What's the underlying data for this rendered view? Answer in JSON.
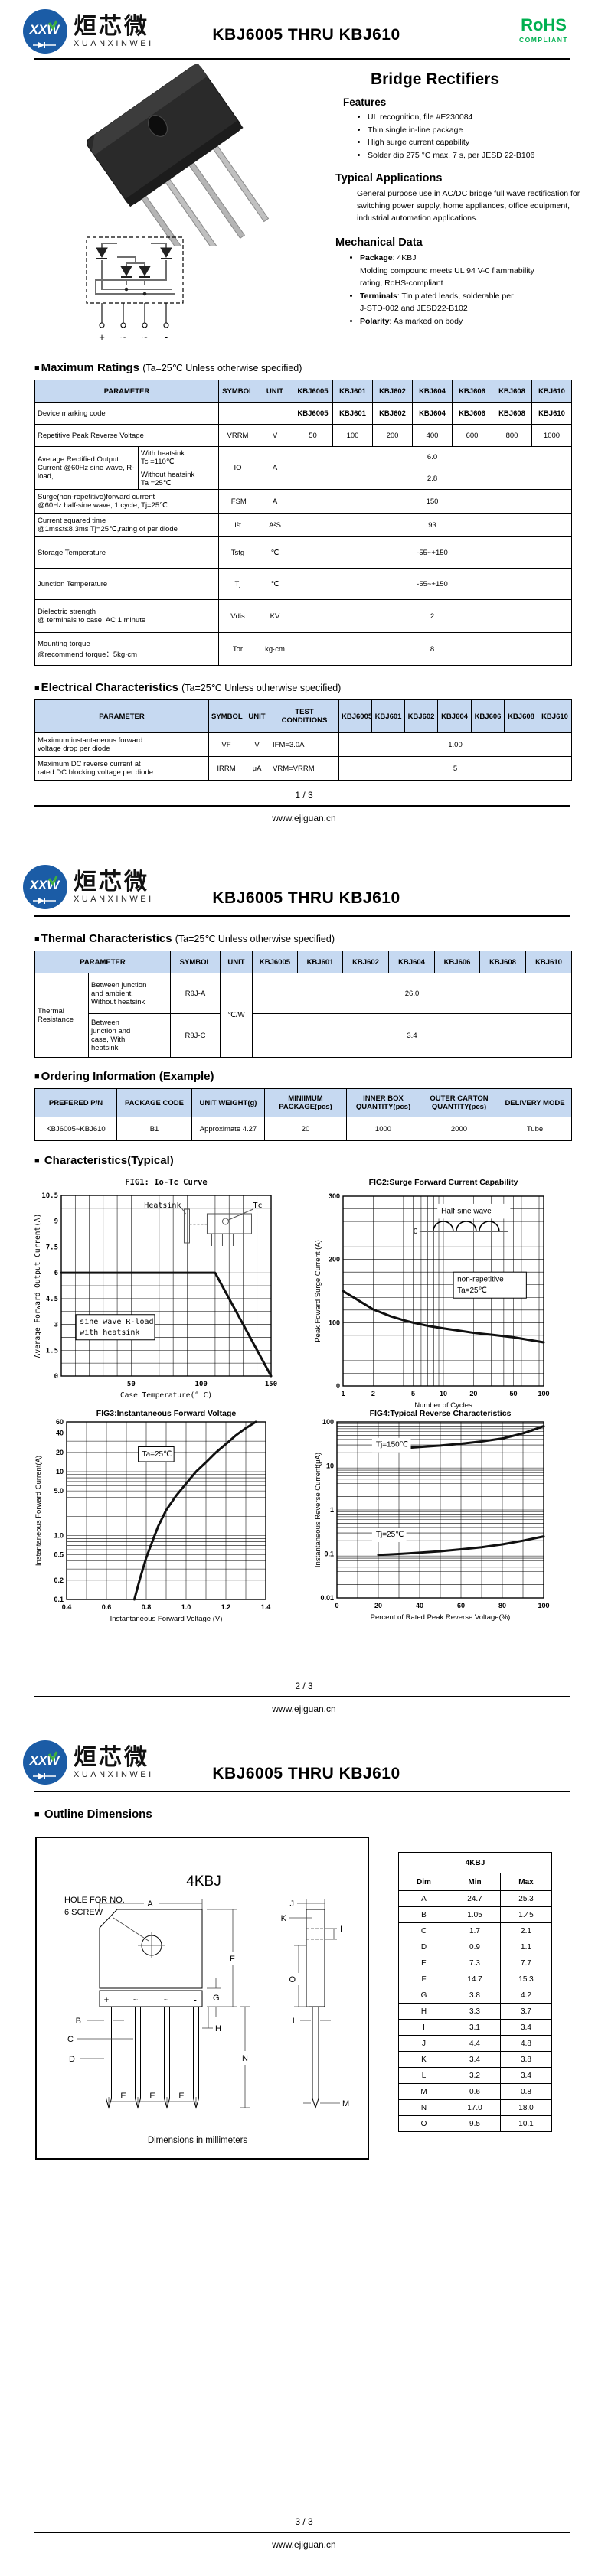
{
  "brand": {
    "mark": "XXW",
    "cn": "烜芯微",
    "en": "XUANXINWEI"
  },
  "doc": {
    "title": "KBJ6005 THRU KBJ610",
    "rohs": "RoHS",
    "rohs_sub": "COMPLIANT",
    "site": "www.ejiguan.cn",
    "pages": [
      "1 / 3",
      "2 / 3",
      "3 / 3"
    ],
    "bullet": "■"
  },
  "devices": [
    "KBJ6005",
    "KBJ601",
    "KBJ602",
    "KBJ604",
    "KBJ606",
    "KBJ608",
    "KBJ610"
  ],
  "intro": {
    "product_title": "Bridge Rectifiers",
    "features_title": "Features",
    "features": [
      "UL recognition, file #E230084",
      "Thin single in-line package",
      "High surge current capability",
      "Solder dip 275 °C max. 7 s, per JESD 22-B106"
    ],
    "apps_title": "Typical  Applications",
    "apps_text": "General purpose use in AC/DC bridge full wave rectification for switching power supply, home appliances, office equipment, industrial automation applications.",
    "mech_title": "Mechanical Data",
    "mech": [
      {
        "b": "Package",
        "t": ": 4KBJ\nMolding compound meets UL 94 V-0 flammability\nrating, RoHS-compliant"
      },
      {
        "b": "Terminals",
        "t": ": Tin plated leads, solderable per\nJ-STD-002 and JESD22-B102"
      },
      {
        "b": "Polarity",
        "t": ": As marked on body"
      }
    ],
    "pins": [
      "+",
      "~",
      "~",
      "-"
    ]
  },
  "max_ratings": {
    "heading": "Maximum Ratings",
    "condition": "(Ta=25℃ Unless otherwise specified)",
    "param_h": "PARAMETER",
    "symbol_h": "SYMBOL",
    "unit_h": "UNIT",
    "marking": {
      "param": "Device marking code"
    },
    "vrrm": {
      "param": "Repetitive Peak Reverse Voltage",
      "symbol": "VRRM",
      "unit": "V",
      "values": [
        "50",
        "100",
        "200",
        "400",
        "600",
        "800",
        "1000"
      ]
    },
    "io": {
      "param": "Average Rectified Output Current @60Hz sine wave, R-load,",
      "sub1": "With heatsink\nTc =110℃",
      "sub2": "Without heatsink\nTa =25℃",
      "symbol": "IO",
      "unit": "A",
      "v1": "6.0",
      "v2": "2.8"
    },
    "ifsm": {
      "param": "Surge(non-repetitive)forward current\n@60Hz half-sine wave, 1 cycle,  Tj=25℃",
      "symbol": "IFSM",
      "unit": "A",
      "value": "150"
    },
    "i2t": {
      "param": "Current squared time\n@1ms≤t≤8.3ms Tj=25℃,rating of per diode",
      "symbol": "I²t",
      "unit": "A²S",
      "value": "93"
    },
    "tstg": {
      "param": "Storage Temperature",
      "symbol": "Tstg",
      "unit": "℃",
      "value": "-55~+150"
    },
    "tj": {
      "param": "Junction Temperature",
      "symbol": "Tj",
      "unit": "℃",
      "value": "-55~+150"
    },
    "vdis": {
      "param": "Dielectric strength\n@ terminals to case, AC 1 minute",
      "symbol": "Vdis",
      "unit": "KV",
      "value": "2"
    },
    "tor": {
      "param": "Mounting torque\n@recommend torque：5kg·cm",
      "symbol": "Tor",
      "unit": "kg·cm",
      "value": "8"
    }
  },
  "electrical": {
    "heading": "Electrical Characteristics",
    "condition": "(Ta=25℃ Unless otherwise specified)",
    "param_h": "PARAMETER",
    "symbol_h": "SYMBOL",
    "unit_h": "UNIT",
    "cond_h": "TEST\nCONDITIONS",
    "vf": {
      "param": "Maximum instantaneous forward\nvoltage drop per diode",
      "symbol": "VF",
      "unit": "V",
      "cond": "IFM=3.0A",
      "value": "1.00"
    },
    "irrm": {
      "param": "Maximum DC reverse current at\nrated DC blocking voltage per diode",
      "symbol": "IRRM",
      "unit": "μA",
      "cond": "VRM=VRRM",
      "value": "5"
    }
  },
  "thermal": {
    "heading": "Thermal Characteristics",
    "condition": "(Ta=25℃ Unless otherwise specified)",
    "param_h": "PARAMETER",
    "symbol_h": "SYMBOL",
    "unit_h": "UNIT",
    "group": "Thermal\nResistance",
    "r1": {
      "sub": "Between junction\nand ambient,\nWithout heatsink",
      "symbol": "RθJ-A",
      "value": "26.0"
    },
    "r2": {
      "sub": "Between\njunction and\ncase, With\nheatsink",
      "symbol": "RθJ-C",
      "value": "3.4"
    },
    "unit": "℃/W"
  },
  "ordering": {
    "heading": "Ordering Information (Example)",
    "headers": [
      "PREFERED P/N",
      "PACKAGE CODE",
      "UNIT WEIGHT(g)",
      "MINIIMUM PACKAGE(pcs)",
      "INNER BOX QUANTITY(pcs)",
      "OUTER CARTON QUANTITY(pcs)",
      "DELIVERY MODE"
    ],
    "row": [
      "KBJ6005~KBJ610",
      "B1",
      "Approximate 4.27",
      "20",
      "1000",
      "2000",
      "Tube"
    ]
  },
  "characteristics": {
    "heading": "Characteristics(Typical)"
  },
  "outline": {
    "heading": "Outline Dimensions",
    "pkg": "4KBJ",
    "hole_note": [
      "HOLE FOR NO.",
      "6 SCREW"
    ],
    "dims_note": "Dimensions in millimeters",
    "labels": {
      "A": "A",
      "B": "B",
      "C": "C",
      "D": "D",
      "E": "E",
      "F": "F",
      "G": "G",
      "H": "H",
      "I": "I",
      "J": "J",
      "K": "K",
      "L": "L",
      "M": "M",
      "N": "N",
      "O": "O"
    },
    "table": {
      "title": "4KBJ",
      "cols": [
        "Dim",
        "Min",
        "Max"
      ],
      "rows": [
        [
          "A",
          "24.7",
          "25.3"
        ],
        [
          "B",
          "1.05",
          "1.45"
        ],
        [
          "C",
          "1.7",
          "2.1"
        ],
        [
          "D",
          "0.9",
          "1.1"
        ],
        [
          "E",
          "7.3",
          "7.7"
        ],
        [
          "F",
          "14.7",
          "15.3"
        ],
        [
          "G",
          "3.8",
          "4.2"
        ],
        [
          "H",
          "3.3",
          "3.7"
        ],
        [
          "I",
          "3.1",
          "3.4"
        ],
        [
          "J",
          "4.4",
          "4.8"
        ],
        [
          "K",
          "3.4",
          "3.8"
        ],
        [
          "L",
          "3.2",
          "3.4"
        ],
        [
          "M",
          "0.6",
          "0.8"
        ],
        [
          "N",
          "17.0",
          "18.0"
        ],
        [
          "O",
          "9.5",
          "10.1"
        ]
      ]
    }
  },
  "chart_data": [
    {
      "type": "line",
      "fig": "FIG1: Io-Tc Curve",
      "xlabel": "Case Temperature(° C)",
      "ylabel": "Average Forward Output Current(A)",
      "xscale": "linear",
      "yscale": "linear",
      "xlim": [
        0,
        150
      ],
      "ylim": [
        0,
        10.5
      ],
      "xgrid": {
        "mode": "lin",
        "step": 10
      },
      "ygrid": {
        "mode": "lin",
        "step": 0.75
      },
      "xticks": [
        [
          50,
          "50"
        ],
        [
          100,
          "100"
        ],
        [
          150,
          "150"
        ]
      ],
      "yticks": [
        [
          0,
          "0"
        ],
        [
          1.5,
          "1.5"
        ],
        [
          3,
          "3"
        ],
        [
          4.5,
          "4.5"
        ],
        [
          6,
          "6"
        ],
        [
          7.5,
          "7.5"
        ],
        [
          9,
          "9"
        ],
        [
          10.5,
          "10.5"
        ]
      ],
      "series": [
        {
          "name": "Io",
          "points": [
            [
              0,
              6
            ],
            [
              110,
              6
            ],
            [
              150,
              0
            ]
          ]
        }
      ],
      "annotations": [
        {
          "fx": 0.07,
          "fy": 0.66,
          "lines": [
            "sine wave R-load",
            "with heatsink"
          ],
          "boxed": true,
          "size": 10
        }
      ],
      "inset": "heatsink",
      "inset_labels": [
        "Heatsink",
        "Tc"
      ]
    },
    {
      "type": "line",
      "fig": "FIG2:Surge Forward Current Capability",
      "xlabel": "Number of Cycles",
      "ylabel": "Peak Foward Surge Current (A)",
      "xscale": "log",
      "yscale": "linear",
      "xlim": [
        1,
        100
      ],
      "ylim": [
        0,
        300
      ],
      "xgrid": {
        "mode": "log"
      },
      "ygrid": {
        "mode": "lin",
        "step": 20
      },
      "xticks": [
        [
          1,
          "1"
        ],
        [
          2,
          "2"
        ],
        [
          5,
          "5"
        ],
        [
          10,
          "10"
        ],
        [
          20,
          "20"
        ],
        [
          50,
          "50"
        ],
        [
          100,
          "100"
        ]
      ],
      "yticks": [
        [
          0,
          "0"
        ],
        [
          100,
          "100"
        ],
        [
          200,
          "200"
        ],
        [
          300,
          "300"
        ]
      ],
      "series": [
        {
          "name": "IFSM",
          "points": [
            [
              1,
              150
            ],
            [
              1.5,
              133
            ],
            [
              2,
              121
            ],
            [
              3,
              110
            ],
            [
              4,
              104
            ],
            [
              5,
              100
            ],
            [
              7,
              95
            ],
            [
              10,
              91
            ],
            [
              15,
              87
            ],
            [
              20,
              84
            ],
            [
              30,
              81
            ],
            [
              50,
              77
            ],
            [
              70,
              73
            ],
            [
              100,
              69
            ]
          ]
        }
      ],
      "annotations": [
        {
          "fx": 0.47,
          "fy": 0.04,
          "lines": [
            "Half-sine wave"
          ],
          "boxed": false,
          "size": 10.5
        },
        {
          "fx": 0.55,
          "fy": 0.4,
          "lines": [
            "non-repetitive",
            "Ta=25℃"
          ],
          "boxed": true,
          "size": 10.5
        }
      ],
      "inset": "halfsine",
      "inset_labels": [
        "0"
      ]
    },
    {
      "type": "line",
      "fig": "FIG3:Instantaneous Forward Voltage",
      "xlabel": "Instantaneous Forward Voltage (V)",
      "ylabel": "Instantaneous Forward Current(A)",
      "xscale": "linear",
      "yscale": "log",
      "xlim": [
        0.4,
        1.4
      ],
      "ylim": [
        0.1,
        60
      ],
      "xgrid": {
        "mode": "lin",
        "step": 0.1
      },
      "ygrid": {
        "mode": "log"
      },
      "xticks": [
        [
          0.4,
          "0.4"
        ],
        [
          0.6,
          "0.6"
        ],
        [
          0.8,
          "0.8"
        ],
        [
          1.0,
          "1.0"
        ],
        [
          1.2,
          "1.2"
        ],
        [
          1.4,
          "1.4"
        ]
      ],
      "yticks": [
        [
          0.1,
          "0.1"
        ],
        [
          0.2,
          "0.2"
        ],
        [
          0.5,
          "0.5"
        ],
        [
          1,
          "1.0"
        ],
        [
          5,
          "5.0"
        ],
        [
          10,
          "10"
        ],
        [
          20,
          "20"
        ],
        [
          40,
          "40"
        ],
        [
          60,
          "60"
        ]
      ],
      "series": [
        {
          "name": "VF",
          "points": [
            [
              0.74,
              0.1
            ],
            [
              0.77,
              0.22
            ],
            [
              0.8,
              0.45
            ],
            [
              0.83,
              0.8
            ],
            [
              0.86,
              1.4
            ],
            [
              0.9,
              2.5
            ],
            [
              0.95,
              4.2
            ],
            [
              1.0,
              6.5
            ],
            [
              1.05,
              10
            ],
            [
              1.1,
              14
            ],
            [
              1.15,
              20
            ],
            [
              1.2,
              27
            ],
            [
              1.25,
              37
            ],
            [
              1.3,
              48
            ],
            [
              1.35,
              60
            ]
          ]
        }
      ],
      "annotations": [
        {
          "fx": 0.36,
          "fy": 0.14,
          "lines": [
            "Ta=25℃"
          ],
          "boxed": true,
          "size": 10.5
        }
      ]
    },
    {
      "type": "line",
      "fig": "FIG4:Typical Reverse Characteristics",
      "xlabel": "Percent of Rated Peak Reverse Voltage(%)",
      "ylabel": "Instantaneous Reverse Current(μA)",
      "xscale": "linear",
      "yscale": "log",
      "xlim": [
        0,
        100
      ],
      "ylim": [
        0.01,
        100
      ],
      "xgrid": {
        "mode": "lin",
        "step": 10
      },
      "ygrid": {
        "mode": "log"
      },
      "xticks": [
        [
          0,
          "0"
        ],
        [
          20,
          "20"
        ],
        [
          40,
          "40"
        ],
        [
          60,
          "60"
        ],
        [
          80,
          "80"
        ],
        [
          100,
          "100"
        ]
      ],
      "yticks": [
        [
          0.01,
          "0.01"
        ],
        [
          0.1,
          "0.1"
        ],
        [
          1,
          "1"
        ],
        [
          10,
          "10"
        ],
        [
          100,
          "100"
        ]
      ],
      "series": [
        {
          "name": "Tj=150℃",
          "points": [
            [
              20,
              24
            ],
            [
              30,
              25
            ],
            [
              40,
              27
            ],
            [
              50,
              29
            ],
            [
              60,
              32
            ],
            [
              70,
              36
            ],
            [
              80,
              42
            ],
            [
              90,
              55
            ],
            [
              100,
              80
            ]
          ]
        },
        {
          "name": "Tj=25℃",
          "points": [
            [
              20,
              0.095
            ],
            [
              30,
              0.1
            ],
            [
              40,
              0.107
            ],
            [
              50,
              0.115
            ],
            [
              60,
              0.127
            ],
            [
              70,
              0.142
            ],
            [
              80,
              0.165
            ],
            [
              90,
              0.2
            ],
            [
              100,
              0.25
            ]
          ]
        }
      ],
      "annotations": [
        {
          "fx": 0.17,
          "fy": 0.09,
          "lines": [
            "Tj=150℃"
          ],
          "boxed": false,
          "size": 10
        },
        {
          "fx": 0.17,
          "fy": 0.6,
          "lines": [
            "Tj=25℃"
          ],
          "boxed": false,
          "size": 10
        }
      ]
    }
  ]
}
